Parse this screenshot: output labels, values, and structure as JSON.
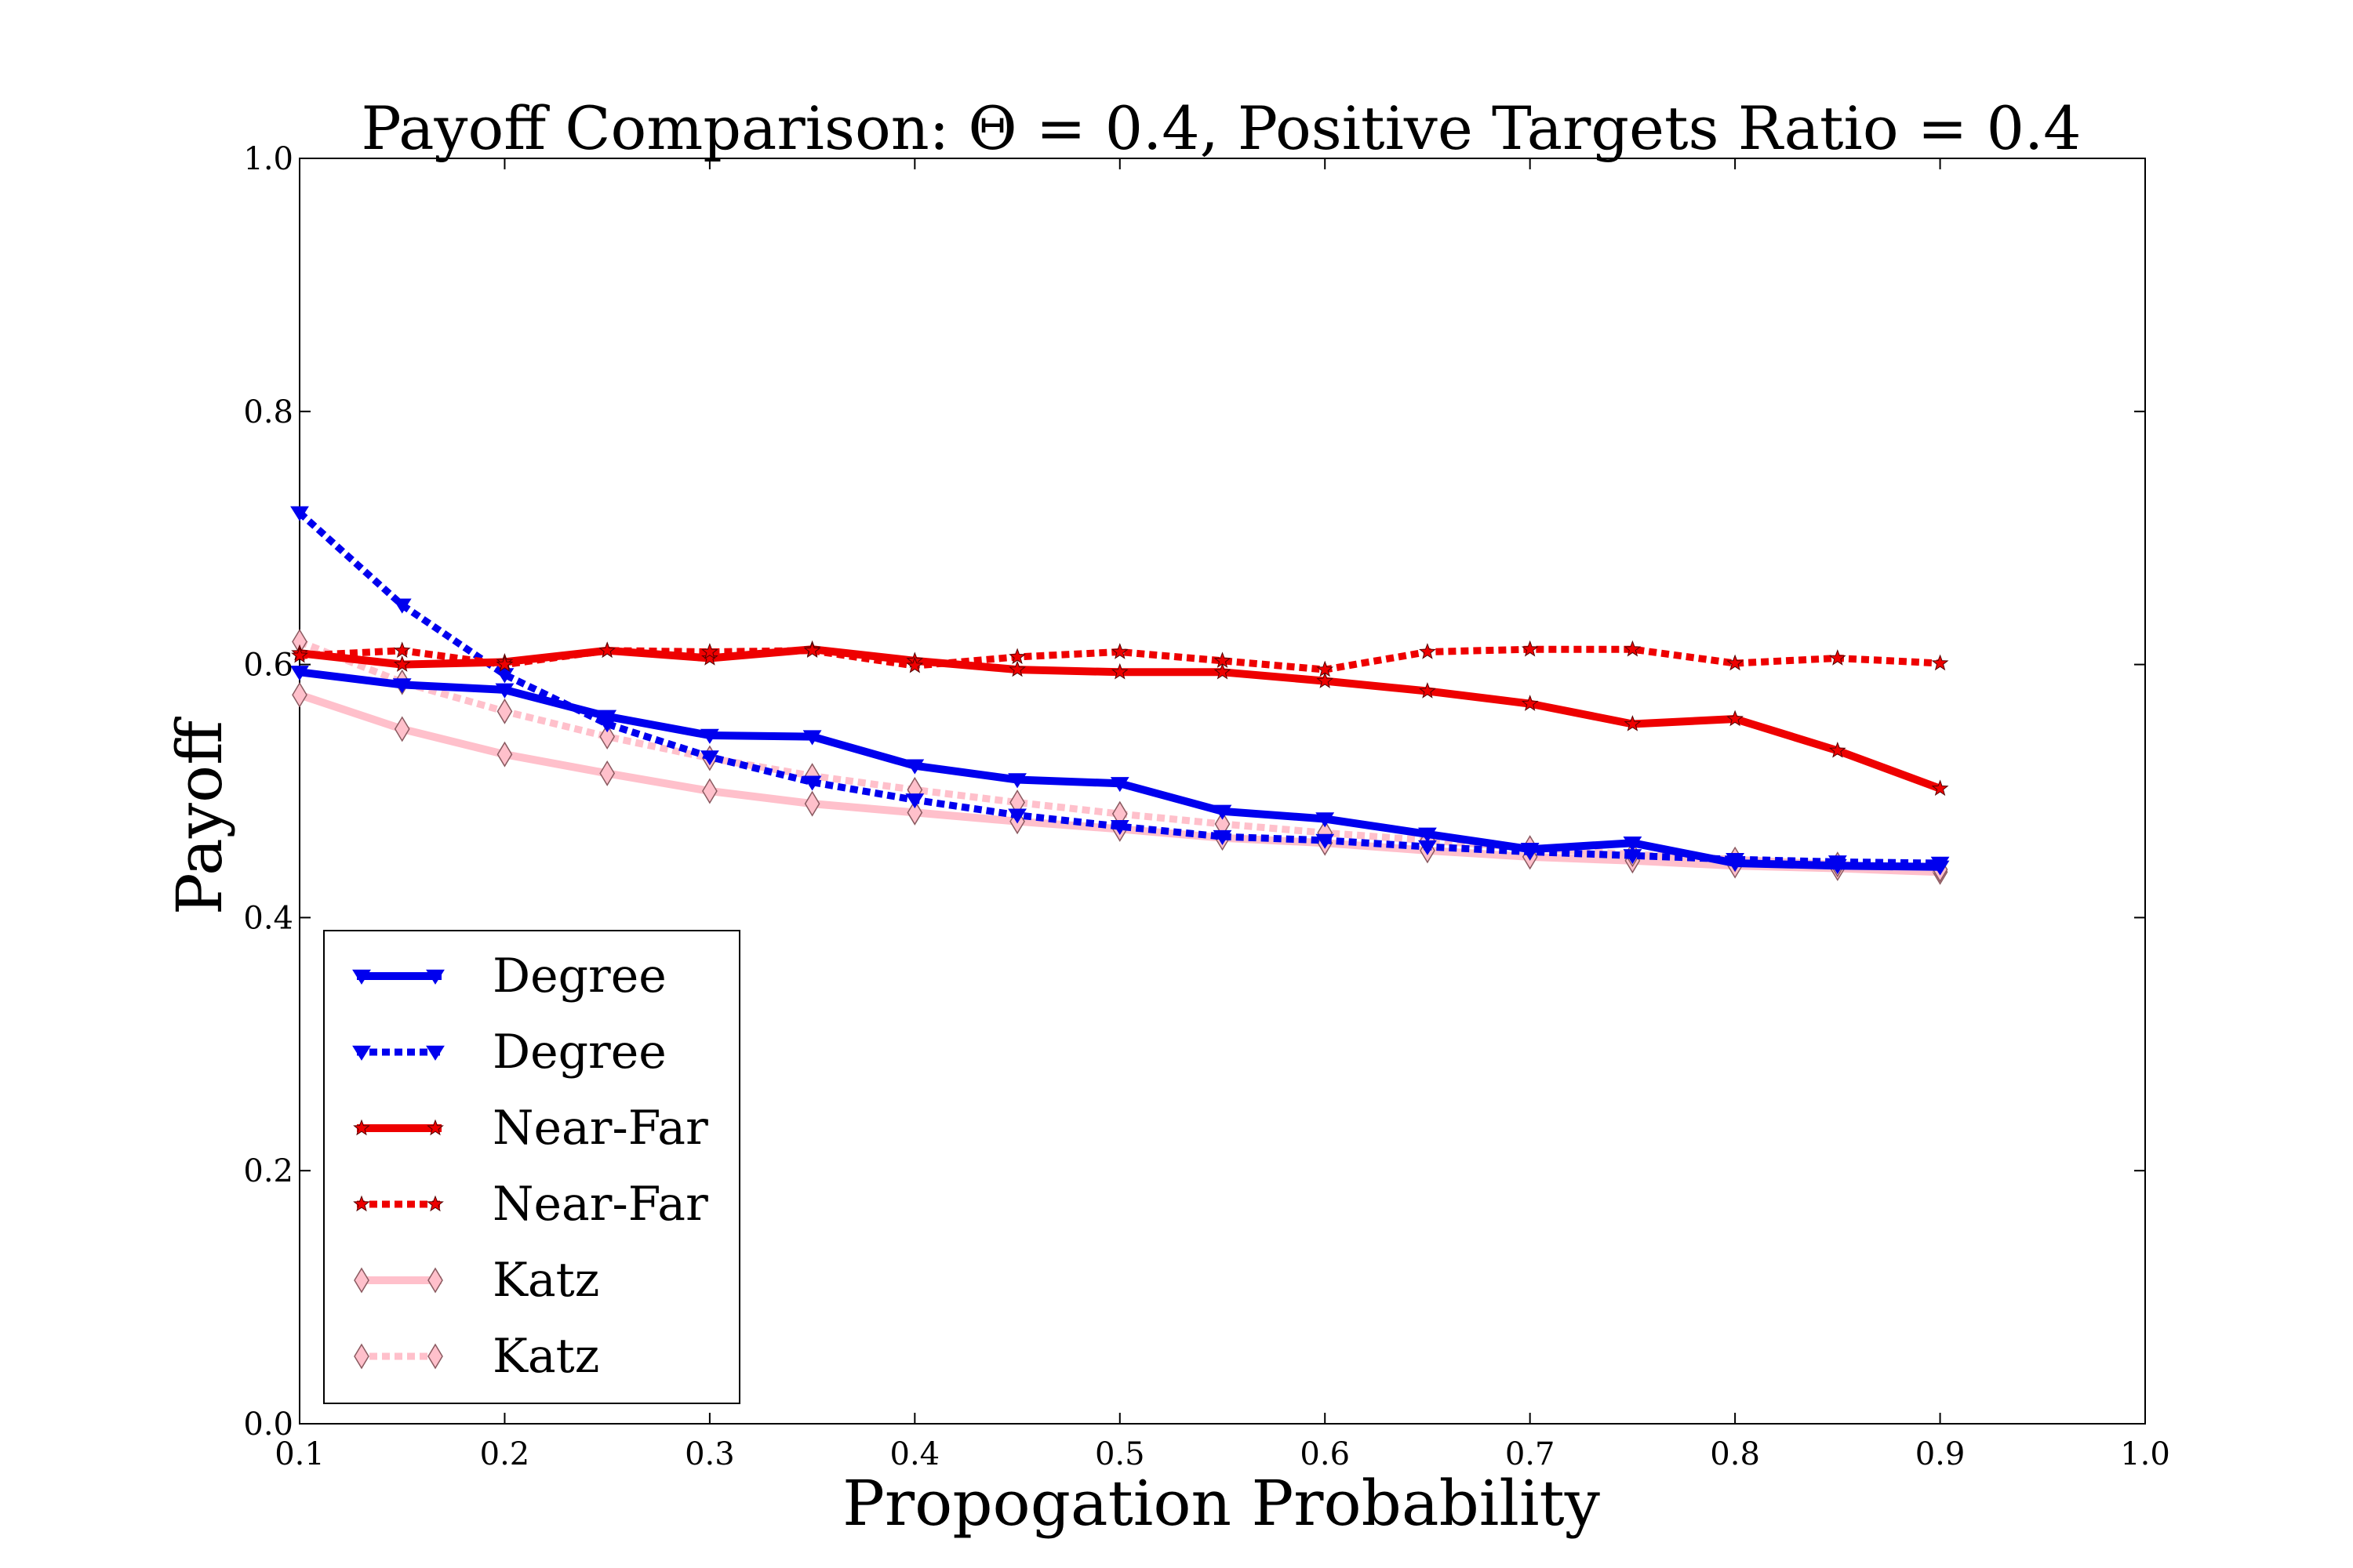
{
  "chart_data": {
    "type": "line",
    "title": "Payoff Comparison: Θ = 0.4, Positive Targets Ratio = 0.4",
    "xlabel": "Propogation Probability",
    "ylabel": "Payoff",
    "xlim": [
      0.1,
      1.0
    ],
    "ylim": [
      0.0,
      1.0
    ],
    "xticks": [
      "0.1",
      "0.2",
      "0.3",
      "0.4",
      "0.5",
      "0.6",
      "0.7",
      "0.8",
      "0.9",
      "1.0"
    ],
    "yticks": [
      "0.0",
      "0.2",
      "0.4",
      "0.6",
      "0.8",
      "1.0"
    ],
    "grid": false,
    "legend_position": "lower-left",
    "x": [
      0.1,
      0.15,
      0.2,
      0.25,
      0.3,
      0.35,
      0.4,
      0.45,
      0.5,
      0.55,
      0.6,
      0.65,
      0.7,
      0.75,
      0.8,
      0.85,
      0.9
    ],
    "series": [
      {
        "name": "Degree",
        "color": "#0000ee",
        "style": "solid",
        "marker": "triangle-down",
        "values": [
          0.594,
          0.584,
          0.58,
          0.559,
          0.544,
          0.543,
          0.52,
          0.509,
          0.506,
          0.484,
          0.478,
          0.466,
          0.454,
          0.459,
          0.443,
          0.441,
          0.44
        ]
      },
      {
        "name": "Degree",
        "color": "#0000ee",
        "style": "dotted",
        "marker": "triangle-down",
        "values": [
          0.72,
          0.647,
          0.592,
          0.553,
          0.527,
          0.507,
          0.493,
          0.481,
          0.472,
          0.464,
          0.461,
          0.456,
          0.452,
          0.449,
          0.446,
          0.444,
          0.443
        ]
      },
      {
        "name": "Near-Far",
        "color": "#ee0000",
        "style": "solid",
        "marker": "star",
        "values": [
          0.609,
          0.6,
          0.602,
          0.611,
          0.605,
          0.612,
          0.603,
          0.596,
          0.594,
          0.594,
          0.587,
          0.579,
          0.569,
          0.553,
          0.557,
          0.532,
          0.502
        ]
      },
      {
        "name": "Near-Far",
        "color": "#ee0000",
        "style": "dotted",
        "marker": "star",
        "values": [
          0.607,
          0.611,
          0.6,
          0.611,
          0.61,
          0.611,
          0.599,
          0.606,
          0.61,
          0.603,
          0.596,
          0.61,
          0.612,
          0.612,
          0.601,
          0.605,
          0.601
        ]
      },
      {
        "name": "Katz",
        "color": "#ffc0cb",
        "style": "solid",
        "marker": "diamond",
        "values": [
          0.576,
          0.549,
          0.529,
          0.514,
          0.5,
          0.49,
          0.483,
          0.476,
          0.47,
          0.463,
          0.459,
          0.453,
          0.448,
          0.445,
          0.441,
          0.439,
          0.436
        ]
      },
      {
        "name": "Katz",
        "color": "#ffc0cb",
        "style": "dotted",
        "marker": "diamond",
        "values": [
          0.618,
          0.586,
          0.563,
          0.543,
          0.526,
          0.512,
          0.501,
          0.491,
          0.482,
          0.474,
          0.467,
          0.461,
          0.455,
          0.45,
          0.446,
          0.442,
          0.438
        ]
      }
    ]
  }
}
